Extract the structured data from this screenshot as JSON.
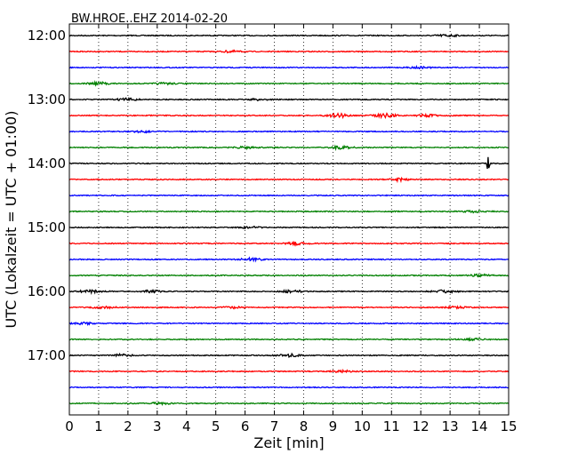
{
  "chart_data": {
    "type": "line",
    "title": "BW.HROE..EHZ 2014-02-20",
    "xlabel": "Zeit  [min]",
    "ylabel": "UTC (Lokalzeit = UTC + 01:00)",
    "xlim": [
      0,
      15
    ],
    "x_ticks": [
      0,
      1,
      2,
      3,
      4,
      5,
      6,
      7,
      8,
      9,
      10,
      11,
      12,
      13,
      14,
      15
    ],
    "y_ticks": [
      "12:00",
      "13:00",
      "14:00",
      "15:00",
      "16:00",
      "17:00"
    ],
    "grid": "vertical-dotted",
    "colors": [
      "#000000",
      "#ff0000",
      "#0000ff",
      "#008000"
    ],
    "trace_interval_min": 15,
    "traces": [
      {
        "start": "12:00",
        "color": "#000000",
        "events": [
          {
            "t": 12.9,
            "amp": 0.25
          }
        ]
      },
      {
        "start": "12:15",
        "color": "#ff0000",
        "events": [
          {
            "t": 5.5,
            "amp": 0.2
          }
        ]
      },
      {
        "start": "12:30",
        "color": "#0000ff",
        "events": [
          {
            "t": 12.0,
            "amp": 0.2
          }
        ]
      },
      {
        "start": "12:45",
        "color": "#008000",
        "events": [
          {
            "t": 1.0,
            "amp": 0.3
          },
          {
            "t": 3.3,
            "amp": 0.2
          }
        ]
      },
      {
        "start": "13:00",
        "color": "#000000",
        "events": [
          {
            "t": 2.0,
            "amp": 0.3
          },
          {
            "t": 6.5,
            "amp": 0.2
          }
        ]
      },
      {
        "start": "13:15",
        "color": "#ff0000",
        "events": [
          {
            "t": 9.2,
            "amp": 0.45
          },
          {
            "t": 10.8,
            "amp": 0.45
          },
          {
            "t": 12.2,
            "amp": 0.3
          }
        ]
      },
      {
        "start": "13:30",
        "color": "#0000ff",
        "events": [
          {
            "t": 2.5,
            "amp": 0.2
          }
        ]
      },
      {
        "start": "13:45",
        "color": "#008000",
        "events": [
          {
            "t": 6.0,
            "amp": 0.25
          },
          {
            "t": 9.3,
            "amp": 0.35
          }
        ]
      },
      {
        "start": "14:00",
        "color": "#000000",
        "events": [
          {
            "t": 14.3,
            "amp": 2.2
          }
        ]
      },
      {
        "start": "14:15",
        "color": "#ff0000",
        "events": [
          {
            "t": 11.3,
            "amp": 0.3
          }
        ]
      },
      {
        "start": "14:30",
        "color": "#0000ff",
        "events": []
      },
      {
        "start": "14:45",
        "color": "#008000",
        "events": [
          {
            "t": 13.8,
            "amp": 0.2
          }
        ]
      },
      {
        "start": "15:00",
        "color": "#000000",
        "events": [
          {
            "t": 6.2,
            "amp": 0.2
          }
        ]
      },
      {
        "start": "15:15",
        "color": "#ff0000",
        "events": [
          {
            "t": 7.8,
            "amp": 0.35
          }
        ]
      },
      {
        "start": "15:30",
        "color": "#0000ff",
        "events": [
          {
            "t": 6.2,
            "amp": 0.3
          }
        ]
      },
      {
        "start": "15:45",
        "color": "#008000",
        "events": [
          {
            "t": 14.0,
            "amp": 0.25
          }
        ]
      },
      {
        "start": "16:00",
        "color": "#000000",
        "events": [
          {
            "t": 0.7,
            "amp": 0.3
          },
          {
            "t": 2.8,
            "amp": 0.25
          },
          {
            "t": 7.6,
            "amp": 0.3
          },
          {
            "t": 12.8,
            "amp": 0.3
          }
        ]
      },
      {
        "start": "16:15",
        "color": "#ff0000",
        "events": [
          {
            "t": 1.2,
            "amp": 0.2
          },
          {
            "t": 5.6,
            "amp": 0.2
          },
          {
            "t": 13.2,
            "amp": 0.2
          }
        ]
      },
      {
        "start": "16:30",
        "color": "#0000ff",
        "events": [
          {
            "t": 0.5,
            "amp": 0.2
          }
        ]
      },
      {
        "start": "16:45",
        "color": "#008000",
        "events": [
          {
            "t": 13.8,
            "amp": 0.2
          }
        ]
      },
      {
        "start": "17:00",
        "color": "#000000",
        "events": [
          {
            "t": 1.8,
            "amp": 0.25
          },
          {
            "t": 7.5,
            "amp": 0.35
          }
        ]
      },
      {
        "start": "17:15",
        "color": "#ff0000",
        "events": [
          {
            "t": 9.3,
            "amp": 0.2
          }
        ]
      },
      {
        "start": "17:30",
        "color": "#0000ff",
        "events": []
      },
      {
        "start": "17:45",
        "color": "#008000",
        "events": [
          {
            "t": 3.1,
            "amp": 0.2
          }
        ]
      }
    ]
  }
}
